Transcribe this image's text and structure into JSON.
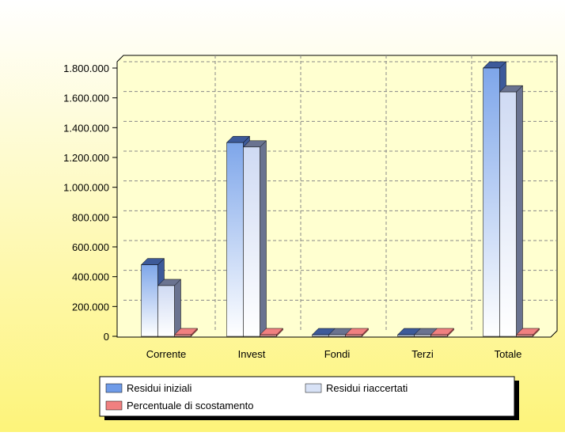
{
  "chart_data": {
    "type": "bar",
    "categories": [
      "Corrente",
      "Invest",
      "Fondi",
      "Terzi",
      "Totale"
    ],
    "series": [
      {
        "name": "Residui iniziali",
        "color": "#6f9be8",
        "values": [
          480000,
          1300000,
          0,
          0,
          1800000
        ]
      },
      {
        "name": "Residui riaccertati",
        "color": "#d8e2f6",
        "values": [
          340000,
          1270000,
          0,
          0,
          1640000
        ]
      },
      {
        "name": "Percentuale di scostamento",
        "color": "#f08080",
        "values": [
          0,
          0,
          0,
          0,
          0
        ]
      }
    ],
    "ylim": [
      0,
      1800000
    ],
    "yticks": [
      0,
      {
        "value": 200000,
        "label": "200.000"
      },
      {
        "value": 400000,
        "label": "400.000"
      },
      {
        "value": 600000,
        "label": "600.000"
      },
      {
        "value": 800000,
        "label": "800.000"
      },
      {
        "value": 1000000,
        "label": "1.000.000"
      },
      {
        "value": 1200000,
        "label": "1.200.000"
      },
      {
        "value": 1400000,
        "label": "1.400.000"
      },
      {
        "value": 1600000,
        "label": "1.600.000"
      },
      {
        "value": 1800000,
        "label": "1.800.000"
      }
    ],
    "grid": true
  }
}
